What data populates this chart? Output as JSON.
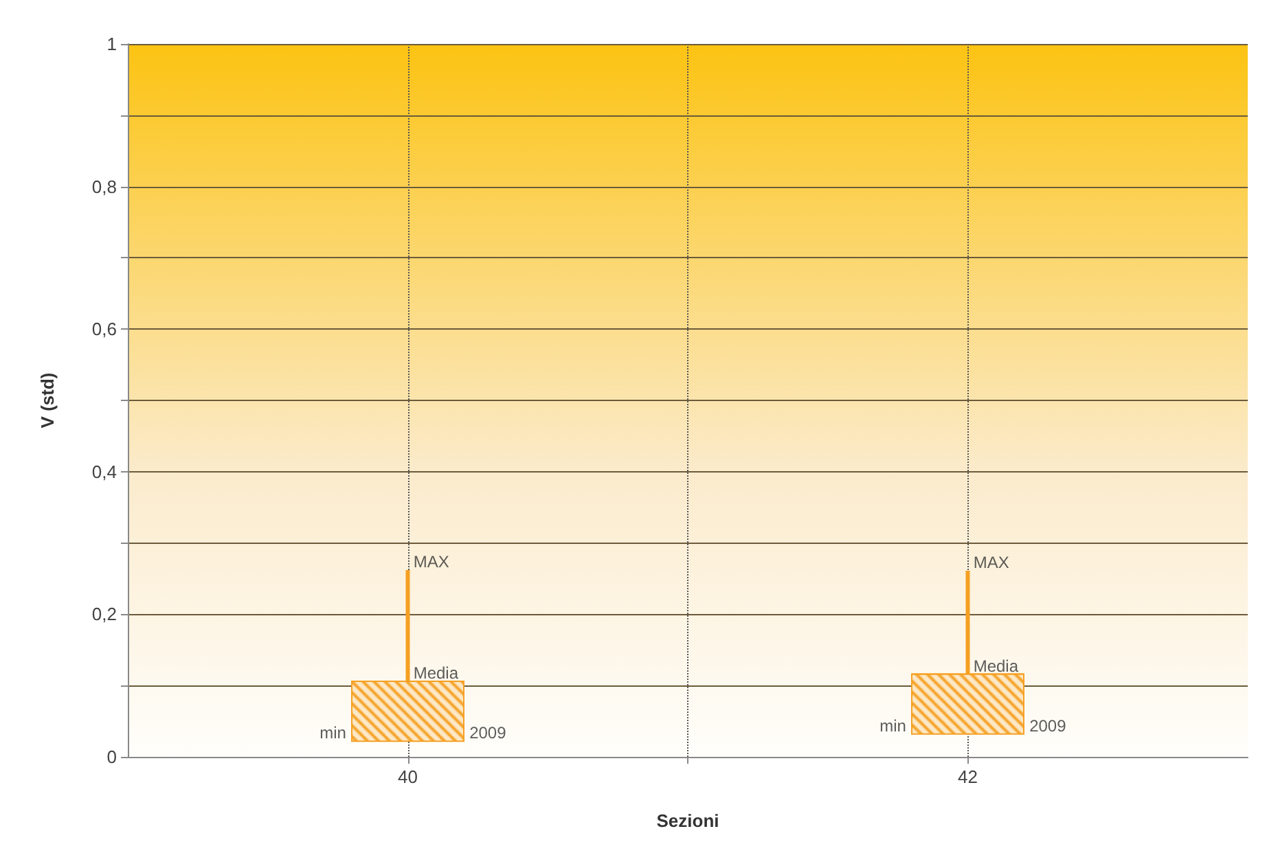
{
  "chart_data": {
    "type": "box",
    "xlabel": "Sezioni",
    "ylabel": "V (std)",
    "x": [
      40,
      42
    ],
    "xlim": [
      39,
      43
    ],
    "xticks": [
      {
        "value": 40,
        "label": "40"
      },
      {
        "value": 41,
        "label": null
      },
      {
        "value": 42,
        "label": "42"
      }
    ],
    "ylim": [
      0,
      1
    ],
    "yticks": [
      {
        "value": 0,
        "label": "0"
      },
      {
        "value": 0.1,
        "label": null
      },
      {
        "value": 0.2,
        "label": "0,2"
      },
      {
        "value": 0.3,
        "label": null
      },
      {
        "value": 0.4,
        "label": "0,4"
      },
      {
        "value": 0.5,
        "label": null
      },
      {
        "value": 0.6,
        "label": "0,6"
      },
      {
        "value": 0.7,
        "label": null
      },
      {
        "value": 0.8,
        "label": "0,8"
      },
      {
        "value": 0.9,
        "label": null
      },
      {
        "value": 1,
        "label": "1"
      }
    ],
    "boxes": [
      {
        "low": 0.022,
        "q1": 0.022,
        "median": 0.106,
        "q3": 0.106,
        "high": 0.262
      },
      {
        "low": 0.032,
        "q1": 0.032,
        "median": 0.116,
        "q3": 0.116,
        "high": 0.261
      }
    ],
    "color": "#f5a023",
    "grid": true,
    "annotations": [
      {
        "text": "min",
        "x": 39.78,
        "y": 0.022
      },
      {
        "text": "2009",
        "x": 40.22,
        "y": 0.022
      },
      {
        "text": "Media",
        "x": 40.02,
        "y": 0.106
      },
      {
        "text": "MAX",
        "x": 40.02,
        "y": 0.262
      },
      {
        "text": "min",
        "x": 41.78,
        "y": 0.032
      },
      {
        "text": "2009",
        "x": 42.22,
        "y": 0.032
      },
      {
        "text": "Media",
        "x": 42.02,
        "y": 0.116
      },
      {
        "text": "MAX",
        "x": 42.02,
        "y": 0.261
      }
    ]
  }
}
